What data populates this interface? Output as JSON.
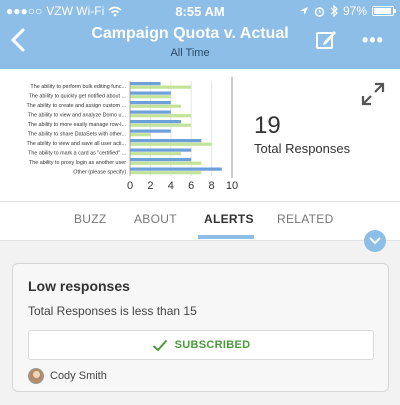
{
  "status_bar": {
    "carrier": "VZW Wi-Fi",
    "time": "8:55 AM",
    "battery": "97%",
    "battery_level": 0.97
  },
  "header": {
    "title": "Campaign Quota v. Actual",
    "subtitle": "All Time"
  },
  "summary": {
    "count": "19",
    "label": "Total Responses"
  },
  "chart_data": {
    "type": "bar",
    "orientation": "horizontal",
    "categories": [
      "The ability to perform bulk editing func...",
      "The ability to quickly get notified about ...",
      "The ability to create and assign custom ...",
      "The ability to view and analyze Domo u...",
      "The ability to more easily manage row-l...",
      "The ability to share DataSets with other...",
      "The ability to view and save all user acti...",
      "The ability to mark a card as \"certified\" ...",
      "The ability to proxy login as another user",
      "Other (please specify)"
    ],
    "series": [
      {
        "values": [
          3,
          4,
          4,
          4,
          5,
          4,
          7,
          6,
          6,
          9
        ],
        "color": "#6d9fd9"
      },
      {
        "values": [
          6,
          4,
          5,
          6,
          6,
          2,
          8,
          5,
          7,
          7
        ],
        "color": "#c3e39a"
      }
    ],
    "x_ticks": [
      "0",
      "2",
      "4",
      "6",
      "8",
      "10"
    ],
    "xlim": [
      0,
      10
    ],
    "reference_value": 10
  },
  "tabs": [
    {
      "label": "BUZZ"
    },
    {
      "label": "ABOUT"
    },
    {
      "label": "ALERTS"
    },
    {
      "label": "RELATED"
    }
  ],
  "alert": {
    "title": "Low responses",
    "description": "Total Responses is less than 15",
    "button_label": "SUBSCRIBED",
    "owner": "Cody Smith"
  },
  "icons": {
    "back": "chevron-left-icon",
    "edit": "edit-icon",
    "more": "more-icon",
    "expand": "expand-icon",
    "collapse": "chevron-down-icon",
    "check": "check-icon",
    "wifi": "wifi-icon",
    "location": "location-icon",
    "alarm": "alarm-icon",
    "bluetooth": "bluetooth-icon"
  },
  "colors": {
    "header_bg": "#8cbee8",
    "subscribed_green": "#4a9a3c"
  }
}
